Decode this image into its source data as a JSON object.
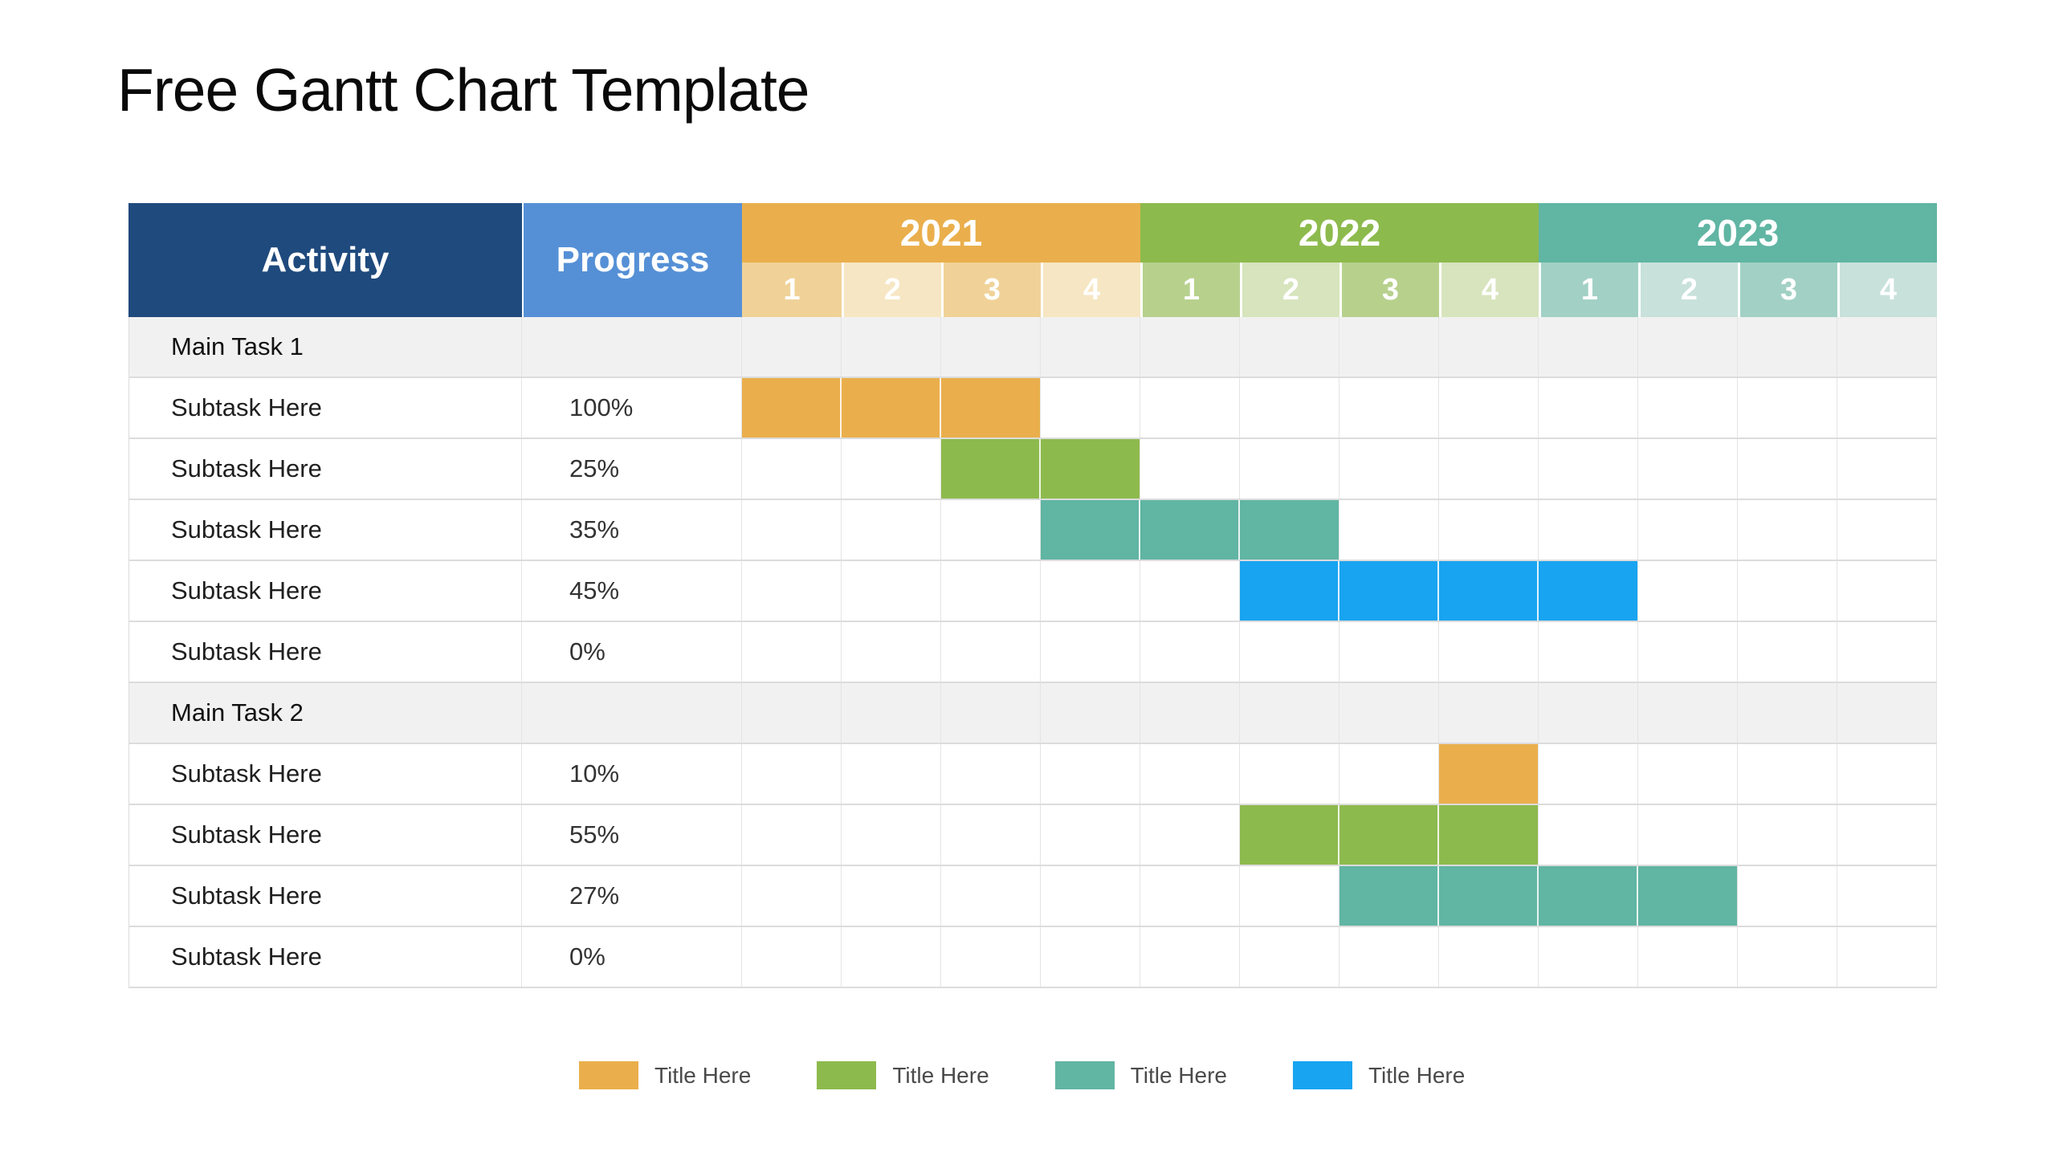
{
  "title": "Free Gantt Chart Template",
  "colors": {
    "activity_header_bg": "#1F4A7D",
    "progress_header_bg": "#5590D6",
    "section_row_bg": "#F1F1F1",
    "grid_line": "#DCDCDC",
    "bar_orange": "#EAAF4C",
    "bar_green": "#8DBA4D",
    "bar_teal": "#60B5A3",
    "bar_blue": "#18A4F0"
  },
  "chart_data": {
    "type": "table",
    "subtype": "gantt",
    "title": "Free Gantt Chart Template",
    "column_headers": {
      "activity": "Activity",
      "progress": "Progress"
    },
    "years": [
      {
        "label": "2021",
        "color": "#EAAF4C",
        "quarter_tint_odd": "#F0D298",
        "quarter_tint_even": "#F6E6C3"
      },
      {
        "label": "2022",
        "color": "#8DBA4D",
        "quarter_tint_odd": "#B7D18D",
        "quarter_tint_even": "#D7E4BD"
      },
      {
        "label": "2023",
        "color": "#60B5A3",
        "quarter_tint_odd": "#A2D0C5",
        "quarter_tint_even": "#C8E1DB"
      }
    ],
    "quarter_labels": [
      "1",
      "2",
      "3",
      "4"
    ],
    "quarter_axis": [
      "2021 Q1",
      "2021 Q2",
      "2021 Q3",
      "2021 Q4",
      "2022 Q1",
      "2022 Q2",
      "2022 Q3",
      "2022 Q4",
      "2023 Q1",
      "2023 Q2",
      "2023 Q3",
      "2023 Q4"
    ],
    "rows": [
      {
        "type": "section",
        "activity": "Main Task 1",
        "progress": "",
        "bar": null
      },
      {
        "type": "task",
        "activity": "Subtask Here",
        "progress": "100%",
        "bar": {
          "start": 1,
          "span": 3,
          "color": "#EAAF4C",
          "from": "2021 Q1",
          "to": "2021 Q3"
        }
      },
      {
        "type": "task",
        "activity": "Subtask Here",
        "progress": "25%",
        "bar": {
          "start": 3,
          "span": 2,
          "color": "#8DBA4D",
          "from": "2021 Q3",
          "to": "2021 Q4"
        }
      },
      {
        "type": "task",
        "activity": "Subtask Here",
        "progress": "35%",
        "bar": {
          "start": 4,
          "span": 3,
          "color": "#60B5A3",
          "from": "2021 Q4",
          "to": "2022 Q2"
        }
      },
      {
        "type": "task",
        "activity": "Subtask Here",
        "progress": "45%",
        "bar": {
          "start": 6,
          "span": 4,
          "color": "#18A4F0",
          "from": "2022 Q2",
          "to": "2023 Q1"
        }
      },
      {
        "type": "task",
        "activity": "Subtask Here",
        "progress": "0%",
        "bar": null
      },
      {
        "type": "section",
        "activity": "Main Task 2",
        "progress": "",
        "bar": null
      },
      {
        "type": "task",
        "activity": "Subtask Here",
        "progress": "10%",
        "bar": {
          "start": 8,
          "span": 1,
          "color": "#EAAF4C",
          "from": "2022 Q4",
          "to": "2022 Q4"
        }
      },
      {
        "type": "task",
        "activity": "Subtask Here",
        "progress": "55%",
        "bar": {
          "start": 6,
          "span": 3,
          "color": "#8DBA4D",
          "from": "2022 Q2",
          "to": "2022 Q4"
        }
      },
      {
        "type": "task",
        "activity": "Subtask Here",
        "progress": "27%",
        "bar": {
          "start": 7,
          "span": 4,
          "color": "#60B5A3",
          "from": "2022 Q3",
          "to": "2023 Q2"
        }
      },
      {
        "type": "task",
        "activity": "Subtask Here",
        "progress": "0%",
        "bar": null
      }
    ],
    "legend": [
      {
        "label": "Title Here",
        "color": "#EAAF4C"
      },
      {
        "label": "Title Here",
        "color": "#8DBA4D"
      },
      {
        "label": "Title Here",
        "color": "#60B5A3"
      },
      {
        "label": "Title Here",
        "color": "#18A4F0"
      }
    ]
  }
}
